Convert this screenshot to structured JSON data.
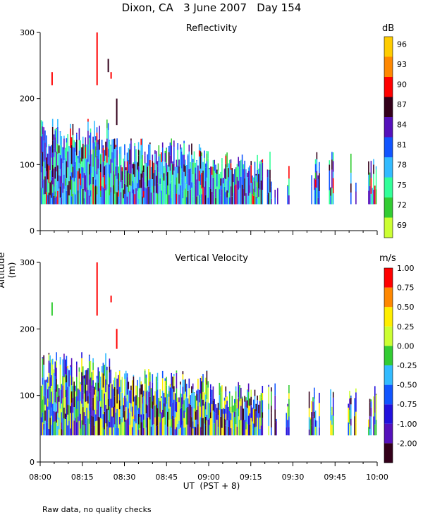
{
  "title": "Dixon, CA   3 June 2007   Day 154",
  "y_axis_label": "Altitude (m)",
  "x_axis_label": "UT  (PST + 8)",
  "footer_note": "Raw data, no quality checks",
  "chart_data": [
    {
      "type": "heatmap",
      "panel": "reflectivity",
      "title": "Reflectivity",
      "ylim": [
        0,
        300
      ],
      "yticks": [
        "0",
        "100",
        "200",
        "300"
      ],
      "xticks": [
        "08:00",
        "08:15",
        "08:30",
        "08:45",
        "09:00",
        "09:15",
        "09:30",
        "09:45",
        "10:00"
      ],
      "colorbar": {
        "unit": "dB",
        "labels": [
          "69",
          "72",
          "75",
          "78",
          "81",
          "84",
          "87",
          "90",
          "93",
          "96"
        ],
        "colors": [
          "#ccff33",
          "#33cc33",
          "#33ff99",
          "#33bbff",
          "#1155ff",
          "#5511bb",
          "#33001a",
          "#ff0000",
          "#ff8800",
          "#ffcc00"
        ]
      }
    },
    {
      "type": "heatmap",
      "panel": "vertical_velocity",
      "title": "Vertical Velocity",
      "ylim": [
        0,
        300
      ],
      "yticks": [
        "0",
        "100",
        "200",
        "300"
      ],
      "xticks": [
        "08:00",
        "08:15",
        "08:30",
        "08:45",
        "09:00",
        "09:15",
        "09:30",
        "09:45",
        "10:00"
      ],
      "colorbar": {
        "unit": "m/s",
        "labels": [
          "-2.00",
          "-1.00",
          "-0.75",
          "-0.50",
          "-0.25",
          "0.00",
          "0.25",
          "0.50",
          "0.75",
          "1.00"
        ],
        "colors": [
          "#33001a",
          "#5511bb",
          "#2211dd",
          "#1155ff",
          "#33bbff",
          "#33cc33",
          "#ccff33",
          "#ffee00",
          "#ff8800",
          "#ff0000"
        ]
      }
    }
  ]
}
